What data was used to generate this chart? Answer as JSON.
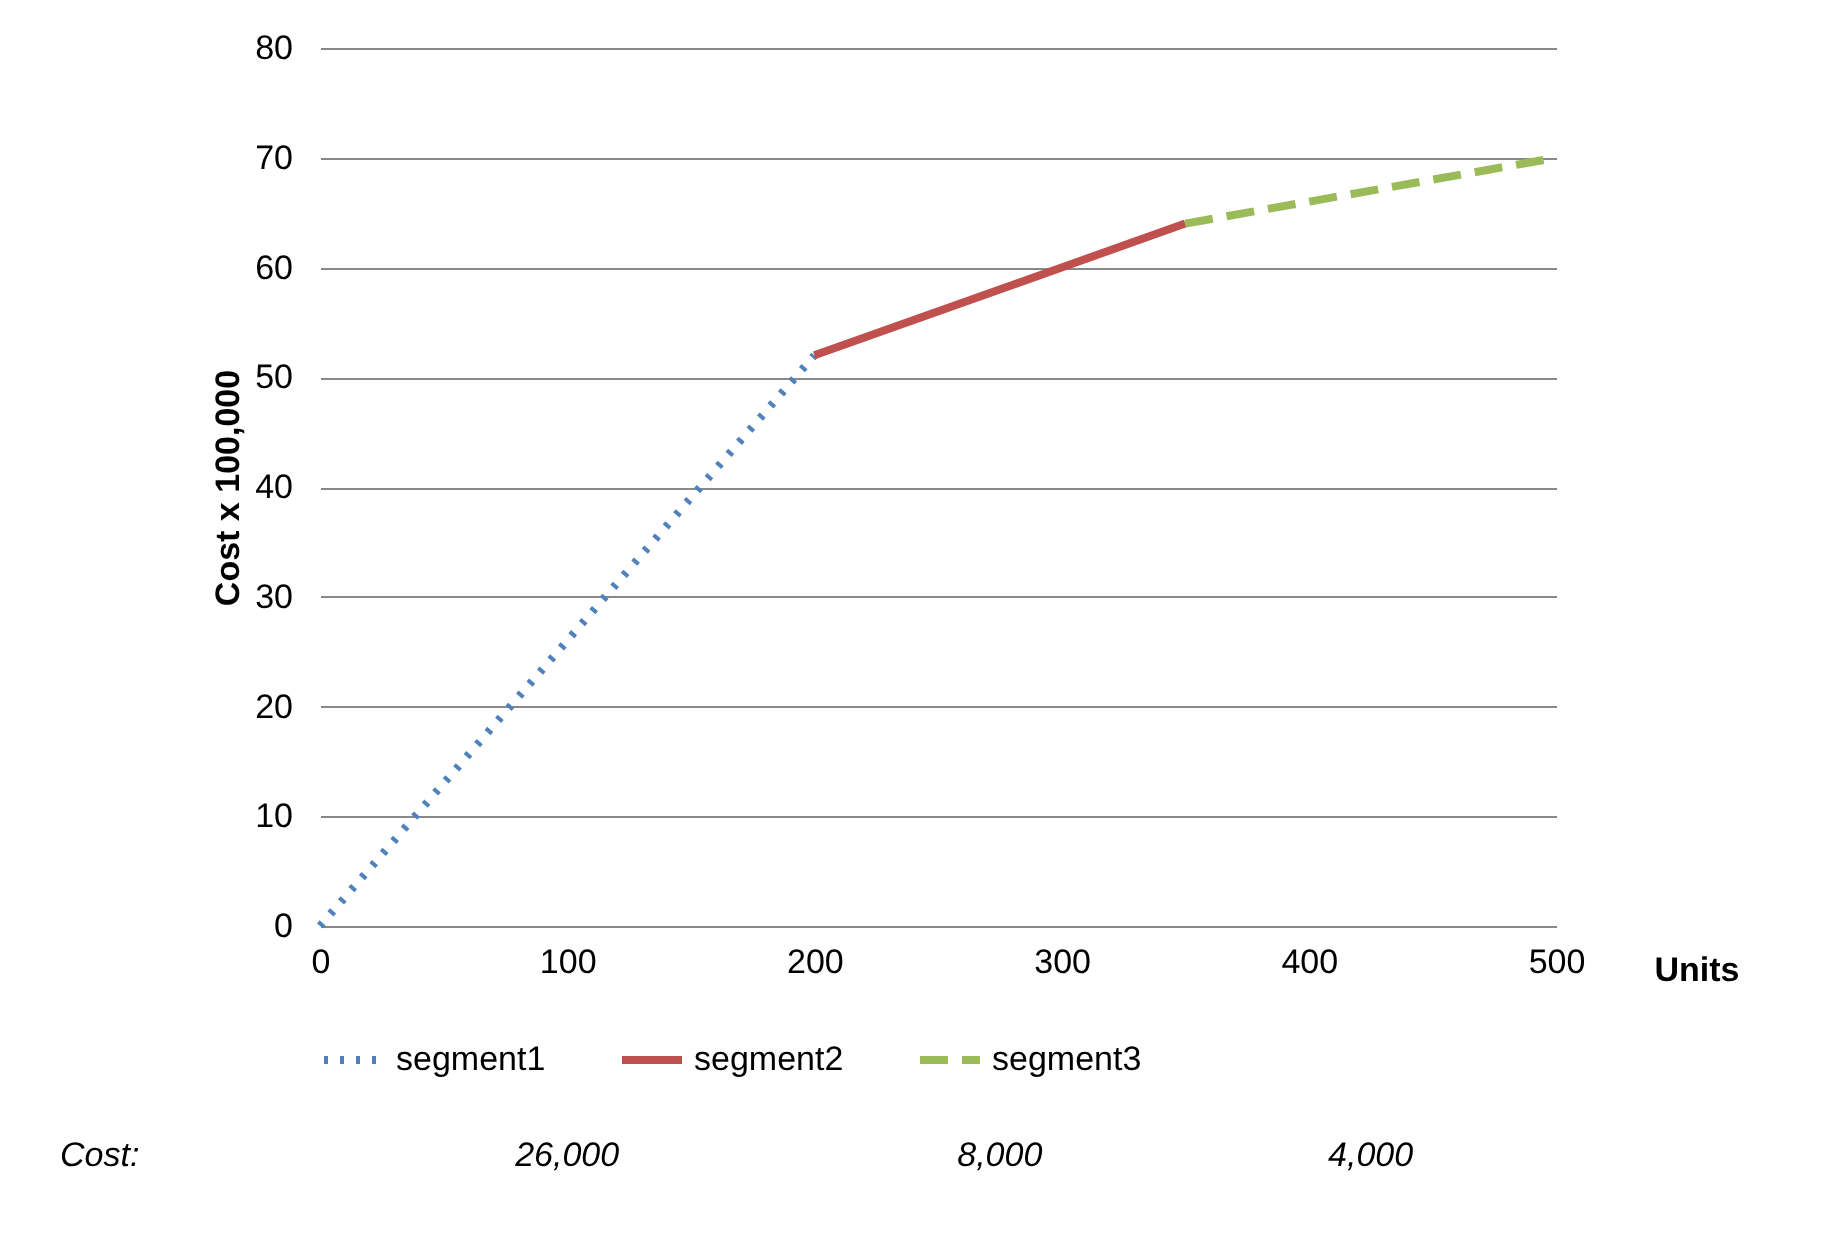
{
  "chart_data": {
    "type": "line",
    "xlabel": "Units",
    "ylabel": "Cost x 100,000",
    "series": [
      {
        "name": "segment1",
        "color": "#4f81bd",
        "line_style": "dotted",
        "x": [
          0,
          200
        ],
        "values": [
          0,
          52
        ]
      },
      {
        "name": "segment2",
        "color": "#c0504d",
        "line_style": "solid",
        "x": [
          200,
          350
        ],
        "values": [
          52,
          64
        ]
      },
      {
        "name": "segment3",
        "color": "#9bbb59",
        "line_style": "dashed",
        "x": [
          350,
          500
        ],
        "values": [
          64,
          70
        ]
      }
    ],
    "xlim": [
      0,
      500
    ],
    "xticks": [
      0,
      100,
      200,
      300,
      400,
      500
    ],
    "ylim": [
      0,
      80
    ],
    "yticks": [
      0,
      10,
      20,
      30,
      40,
      50,
      60,
      70,
      80
    ],
    "grid": "y",
    "legend": "bottom",
    "marker": "none",
    "annotations": [
      "Cost:",
      "26,000",
      "8,000",
      "4,000"
    ]
  }
}
